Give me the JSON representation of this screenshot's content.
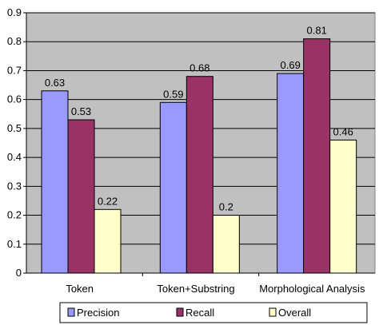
{
  "chart_data": {
    "type": "bar",
    "categories": [
      "Token",
      "Token+Substring",
      "Morphological Analysis"
    ],
    "series": [
      {
        "name": "Precision",
        "values": [
          0.63,
          0.59,
          0.69
        ],
        "color": "#9999ff"
      },
      {
        "name": "Recall",
        "values": [
          0.53,
          0.68,
          0.81
        ],
        "color": "#993366"
      },
      {
        "name": "Overall",
        "values": [
          0.22,
          0.2,
          0.46
        ],
        "color": "#ffffcc"
      }
    ],
    "data_labels": [
      [
        "0.63",
        "0.53",
        "0.22"
      ],
      [
        "0.59",
        "0.68",
        "0.2"
      ],
      [
        "0.69",
        "0.81",
        "0.46"
      ]
    ],
    "y_ticks": [
      "0",
      "0.1",
      "0.2",
      "0.3",
      "0.4",
      "0.5",
      "0.6",
      "0.7",
      "0.8",
      "0.9"
    ],
    "ylim": [
      0,
      0.9
    ],
    "grid": true,
    "plot_background": "#c0c0c0",
    "legend_position": "bottom",
    "title": "",
    "xlabel": "",
    "ylabel": ""
  }
}
